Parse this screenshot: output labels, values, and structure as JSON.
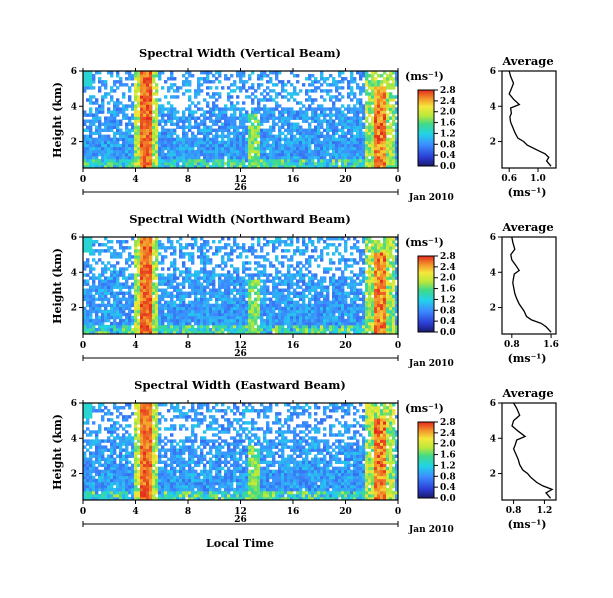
{
  "figure": {
    "xlabel": "Local Time",
    "date_label": "Jan 2010",
    "colorbar_unit": "(ms⁻¹)",
    "avg_xlabel": "(ms⁻¹)",
    "avg_title": "Average"
  },
  "chart_data": [
    {
      "type": "heatmap",
      "title": "Spectral Width (Vertical Beam)",
      "ylabel": "Height (km)",
      "xlabel": "",
      "x_ticks": [
        "0",
        "4",
        "8",
        "12",
        "16",
        "20",
        "0"
      ],
      "date_tick": "26",
      "xlim": [
        0,
        24
      ],
      "y_ticks": [
        "2",
        "4",
        "6"
      ],
      "ylim": [
        0.5,
        6.0
      ],
      "colorbar": {
        "ticks": [
          "0.0",
          "0.4",
          "0.8",
          "1.2",
          "1.6",
          "2.0",
          "2.4",
          "2.8"
        ],
        "range": [
          0,
          2.8
        ],
        "unit": "ms-1"
      },
      "features": {
        "front_times": [
          4.8,
          22.6
        ],
        "mid_time": 13.1
      }
    },
    {
      "type": "line",
      "title": "Average",
      "xlabel": "(ms-1)",
      "x_ticks": [
        "0.6",
        "1.0"
      ],
      "xlim": [
        0.5,
        1.25
      ],
      "y_ticks": [
        "2",
        "4",
        "6"
      ],
      "ylim": [
        0.5,
        6.0
      ],
      "series": [
        {
          "x": [
            0.6,
            0.62,
            0.66,
            0.63,
            0.6,
            0.66,
            0.74,
            0.62,
            0.63,
            0.61,
            0.62,
            0.65,
            0.68,
            0.72,
            0.8,
            0.85,
            1.0,
            1.1,
            1.15,
            1.12,
            1.18
          ],
          "y": [
            6.0,
            5.7,
            5.3,
            5.0,
            4.7,
            4.4,
            4.1,
            3.9,
            3.6,
            3.4,
            3.1,
            2.8,
            2.5,
            2.2,
            2.0,
            1.8,
            1.5,
            1.3,
            1.1,
            0.9,
            0.6
          ]
        }
      ]
    },
    {
      "type": "heatmap",
      "title": "Spectral Width (Northward Beam)",
      "ylabel": "Height (km)",
      "xlabel": "",
      "x_ticks": [
        "0",
        "4",
        "8",
        "12",
        "16",
        "20",
        "0"
      ],
      "date_tick": "26",
      "xlim": [
        0,
        24
      ],
      "y_ticks": [
        "2",
        "4",
        "6"
      ],
      "ylim": [
        0.5,
        6.0
      ],
      "colorbar": {
        "ticks": [
          "0.0",
          "0.4",
          "0.8",
          "1.2",
          "1.6",
          "2.0",
          "2.4",
          "2.8"
        ],
        "range": [
          0,
          2.8
        ],
        "unit": "ms-1"
      },
      "features": {
        "front_times": [
          4.8,
          22.6
        ],
        "mid_time": 13.1
      }
    },
    {
      "type": "line",
      "title": "Average",
      "xlabel": "(ms-1)",
      "x_ticks": [
        "0.8",
        "1.6"
      ],
      "xlim": [
        0.6,
        1.7
      ],
      "y_ticks": [
        "2",
        "4",
        "6"
      ],
      "ylim": [
        0.5,
        6.0
      ],
      "series": [
        {
          "x": [
            0.8,
            0.82,
            0.86,
            0.78,
            0.8,
            0.88,
            0.95,
            0.85,
            0.83,
            0.82,
            0.84,
            0.86,
            0.9,
            0.95,
            1.0,
            1.05,
            1.1,
            1.2,
            1.4,
            1.5,
            1.6
          ],
          "y": [
            6.0,
            5.7,
            5.3,
            5.0,
            4.7,
            4.4,
            4.1,
            3.9,
            3.6,
            3.4,
            3.1,
            2.8,
            2.5,
            2.2,
            2.0,
            1.8,
            1.5,
            1.3,
            1.1,
            0.9,
            0.6
          ]
        }
      ]
    },
    {
      "type": "heatmap",
      "title": "Spectral Width (Eastward Beam)",
      "ylabel": "Height (km)",
      "xlabel": "Local Time",
      "x_ticks": [
        "0",
        "4",
        "8",
        "12",
        "16",
        "20",
        "0"
      ],
      "date_tick": "26",
      "xlim": [
        0,
        24
      ],
      "y_ticks": [
        "2",
        "4",
        "6"
      ],
      "ylim": [
        0.5,
        6.0
      ],
      "colorbar": {
        "ticks": [
          "0.0",
          "0.4",
          "0.8",
          "1.2",
          "1.6",
          "2.0",
          "2.4",
          "2.8"
        ],
        "range": [
          0,
          2.8
        ],
        "unit": "ms-1"
      },
      "features": {
        "front_times": [
          4.8,
          22.6
        ],
        "mid_time": 13.1
      }
    },
    {
      "type": "line",
      "title": "Average",
      "xlabel": "(ms-1)",
      "x_ticks": [
        "0.8",
        "1.2"
      ],
      "xlim": [
        0.65,
        1.35
      ],
      "y_ticks": [
        "2",
        "4",
        "6"
      ],
      "ylim": [
        0.5,
        6.0
      ],
      "series": [
        {
          "x": [
            0.8,
            0.84,
            0.88,
            0.8,
            0.78,
            0.86,
            0.95,
            0.84,
            0.82,
            0.8,
            0.83,
            0.86,
            0.88,
            0.92,
            0.98,
            1.02,
            1.1,
            1.18,
            1.3,
            1.22,
            1.28
          ],
          "y": [
            6.0,
            5.7,
            5.3,
            5.0,
            4.7,
            4.4,
            4.1,
            3.9,
            3.6,
            3.4,
            3.1,
            2.8,
            2.5,
            2.2,
            2.0,
            1.8,
            1.5,
            1.3,
            1.1,
            0.9,
            0.6
          ]
        }
      ]
    }
  ]
}
